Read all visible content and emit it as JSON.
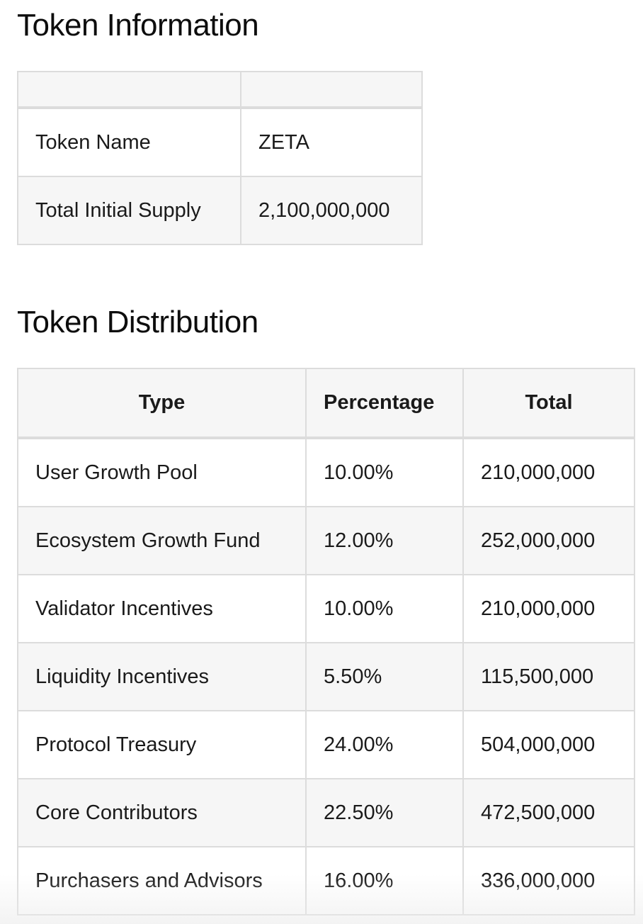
{
  "token_information": {
    "title": "Token Information",
    "header": [
      "",
      ""
    ],
    "rows": [
      {
        "label": "Token Name",
        "value": "ZETA"
      },
      {
        "label": "Total Initial Supply",
        "value": "2,100,000,000"
      }
    ]
  },
  "token_distribution": {
    "title": "Token Distribution",
    "columns": [
      "Type",
      "Percentage",
      "Total"
    ],
    "rows": [
      {
        "type": "User Growth Pool",
        "percentage": "10.00%",
        "total": "210,000,000"
      },
      {
        "type": "Ecosystem Growth Fund",
        "percentage": "12.00%",
        "total": "252,000,000"
      },
      {
        "type": "Validator Incentives",
        "percentage": "10.00%",
        "total": "210,000,000"
      },
      {
        "type": "Liquidity Incentives",
        "percentage": "5.50%",
        "total": "115,500,000"
      },
      {
        "type": "Protocol Treasury",
        "percentage": "24.00%",
        "total": "504,000,000"
      },
      {
        "type": "Core Contributors",
        "percentage": "22.50%",
        "total": "472,500,000"
      },
      {
        "type": "Purchasers and Advisors",
        "percentage": "16.00%",
        "total": "336,000,000"
      }
    ]
  }
}
